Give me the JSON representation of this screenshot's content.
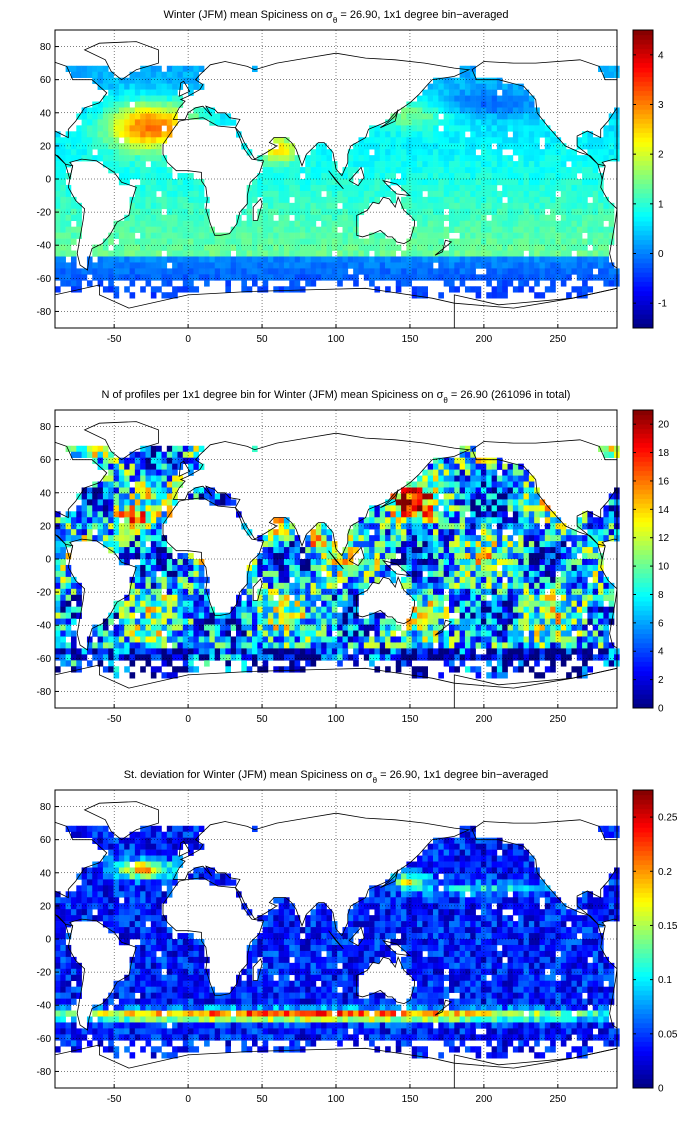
{
  "figure": {
    "note": ""
  },
  "chart_data": [
    {
      "type": "heatmap",
      "title": "Winter (JFM) mean Spiciness on σ",
      "title_sub": "θ",
      "title_tail": " = 26.90, 1x1 degree bin−averaged",
      "xlabel": "",
      "ylabel": "",
      "xlim": [
        -90,
        290
      ],
      "ylim": [
        -90,
        90
      ],
      "xticks": [
        -50,
        0,
        50,
        100,
        150,
        200,
        250
      ],
      "yticks": [
        80,
        60,
        40,
        20,
        0,
        -20,
        -40,
        -60,
        -80
      ],
      "grid": true,
      "colorbar": {
        "min": -1.5,
        "max": 4.5,
        "ticks": [
          4,
          3,
          2,
          1,
          0,
          -1
        ]
      },
      "colormap": "jet",
      "field": "spiciness"
    },
    {
      "type": "heatmap",
      "title": "N of profiles per 1x1 degree bin for Winter (JFM) mean Spiciness on σ",
      "title_sub": "θ",
      "title_tail": " = 26.90 (261096 in total)",
      "xlabel": "",
      "ylabel": "",
      "xlim": [
        -90,
        290
      ],
      "ylim": [
        -90,
        90
      ],
      "xticks": [
        -50,
        0,
        50,
        100,
        150,
        200,
        250
      ],
      "yticks": [
        80,
        60,
        40,
        20,
        0,
        -20,
        -40,
        -60,
        -80
      ],
      "grid": true,
      "colorbar": {
        "min": 0,
        "max": 21,
        "ticks": [
          20,
          18,
          16,
          14,
          12,
          10,
          8,
          6,
          4,
          2,
          0
        ]
      },
      "colormap": "jet",
      "field": "count"
    },
    {
      "type": "heatmap",
      "title": "St. deviation for Winter (JFM) mean Spiciness on σ",
      "title_sub": "θ",
      "title_tail": " = 26.90, 1x1 degree bin−averaged",
      "xlabel": "",
      "ylabel": "",
      "xlim": [
        -90,
        290
      ],
      "ylim": [
        -90,
        90
      ],
      "xticks": [
        -50,
        0,
        50,
        100,
        150,
        200,
        250
      ],
      "yticks": [
        80,
        60,
        40,
        20,
        0,
        -20,
        -40,
        -60,
        -80
      ],
      "grid": true,
      "colorbar": {
        "min": 0,
        "max": 0.275,
        "ticks": [
          0.25,
          0.2,
          0.15,
          0.1,
          0.05,
          0
        ]
      },
      "colormap": "jet",
      "field": "std"
    }
  ]
}
